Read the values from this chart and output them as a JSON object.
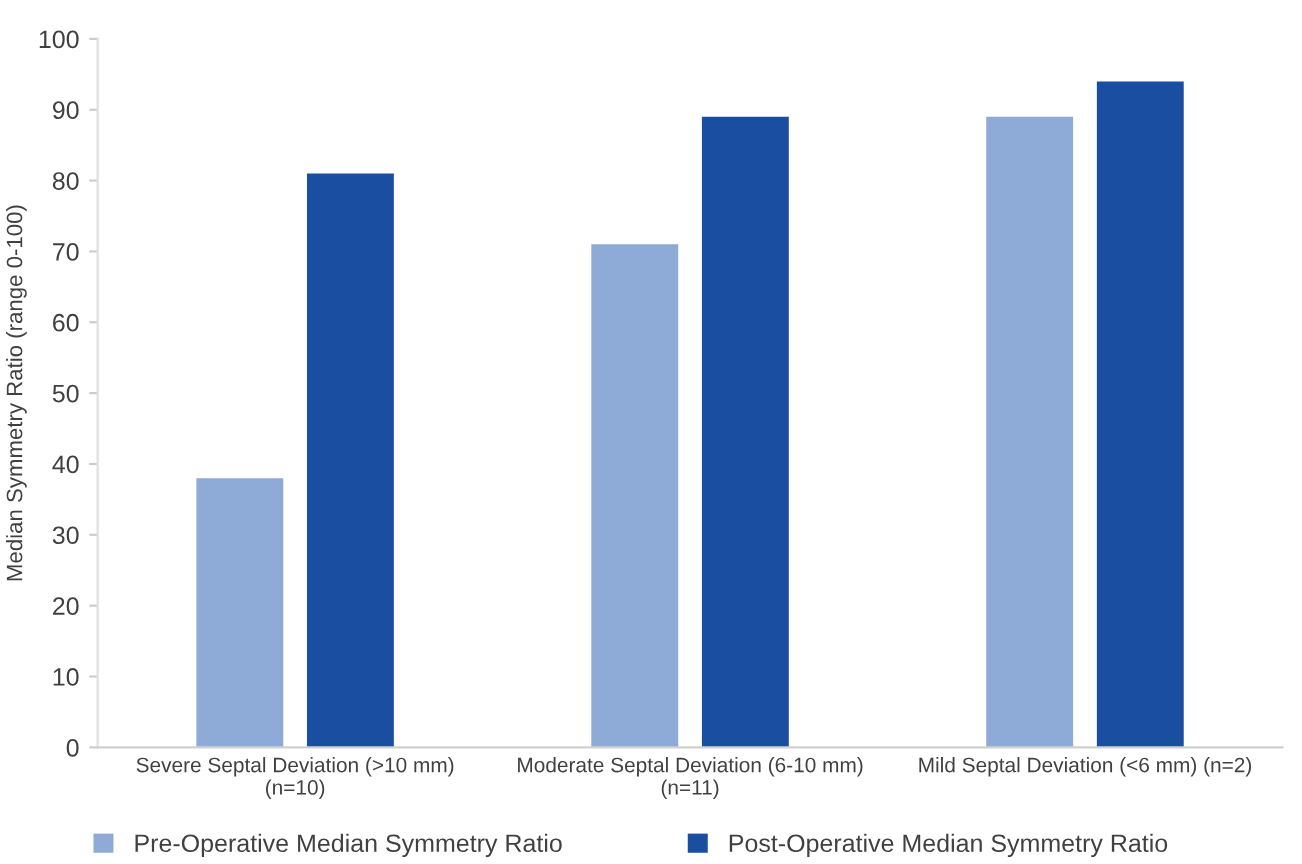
{
  "chart_data": {
    "type": "bar",
    "ylabel": "Median Symmetry Ratio (range 0-100)",
    "categories": [
      "Severe Septal Deviation (>10 mm)\n(n=10)",
      "Moderate Septal Deviation (6-10 mm)\n(n=11)",
      "Mild Septal Deviation (<6 mm) (n=2)"
    ],
    "series": [
      {
        "name": "Pre-Operative Median Symmetry Ratio",
        "color": "#8eaad6",
        "values": [
          38,
          71,
          89
        ]
      },
      {
        "name": "Post-Operative Median Symmetry Ratio",
        "color": "#1a4ea0",
        "values": [
          81,
          89,
          94
        ]
      }
    ],
    "ylim": [
      0,
      100
    ],
    "yticks": [
      0,
      10,
      20,
      30,
      40,
      50,
      60,
      70,
      80,
      90,
      100
    ],
    "grid": false,
    "legend": "bottom"
  }
}
